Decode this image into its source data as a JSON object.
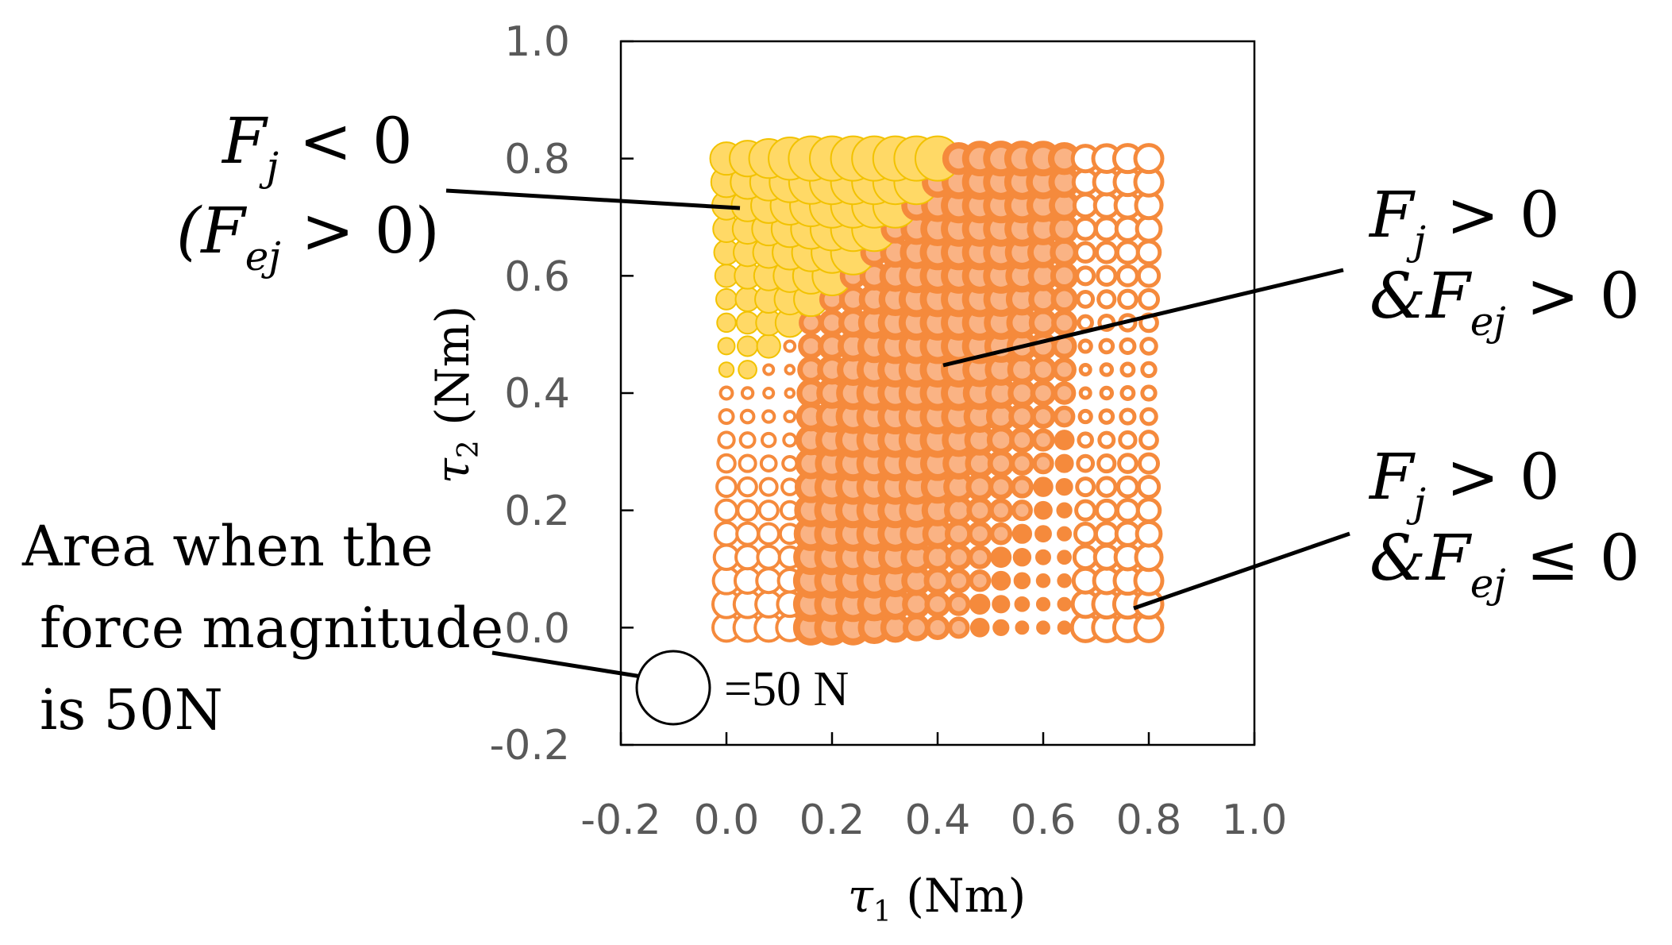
{
  "chart_data": {
    "type": "scatter",
    "subtype": "bubble",
    "title": "",
    "xlabel_symbol": "τ",
    "xlabel_sub": "1",
    "xlabel_unit": " (Nm)",
    "ylabel_symbol": "τ",
    "ylabel_sub": "2",
    "ylabel_unit": " (Nm)",
    "xlim": [
      -0.2,
      1.0
    ],
    "ylim": [
      -0.2,
      1.0
    ],
    "xticks": [
      "-0.2",
      "0.0",
      "0.2",
      "0.4",
      "0.6",
      "0.8",
      "1.0"
    ],
    "yticks": [
      "1.0",
      "0.8",
      "0.6",
      "0.4",
      "0.2",
      "0.0",
      "-0.2"
    ],
    "grid_step": 0.04,
    "grid_range": [
      0.0,
      0.8
    ],
    "series": [
      {
        "name": "Fj < 0 (Fej > 0)",
        "color": "#FFD966",
        "edge": "#F2C200",
        "region": "tau2 >= 0.44 and tau2 - tau1 >= 0.4"
      },
      {
        "name": "Fj > 0 & Fej > 0",
        "color": "#F58A3C",
        "inner": "#FAB384",
        "region": "central band"
      },
      {
        "name": "Fj > 0 & Fej <= 0",
        "color": "#FFFFFF",
        "edge": "#F58A3C",
        "region": "outer right and lower-left"
      }
    ],
    "legend_circle_force_N": 50,
    "legend_text": "=50 N"
  },
  "annotations": {
    "negative": {
      "line1_main": "F",
      "line1_sub": "j",
      "line1_rest": " < 0",
      "line2_open": "(F",
      "line2_sub": "ej",
      "line2_rest": " > 0)"
    },
    "both_positive": {
      "line1_main": "F",
      "line1_sub": "j",
      "line1_rest": " > 0",
      "line2_main": "&F",
      "line2_sub": "ej",
      "line2_rest": " > 0"
    },
    "fej_nonpositive": {
      "line1_main": "F",
      "line1_sub": "j",
      "line1_rest": " > 0",
      "line2_main": "&F",
      "line2_sub": "ej",
      "line2_rest": " ≤ 0"
    },
    "area_note": {
      "line1": "Area when the",
      "line2": "force magnitude",
      "line3": "is 50N"
    }
  }
}
